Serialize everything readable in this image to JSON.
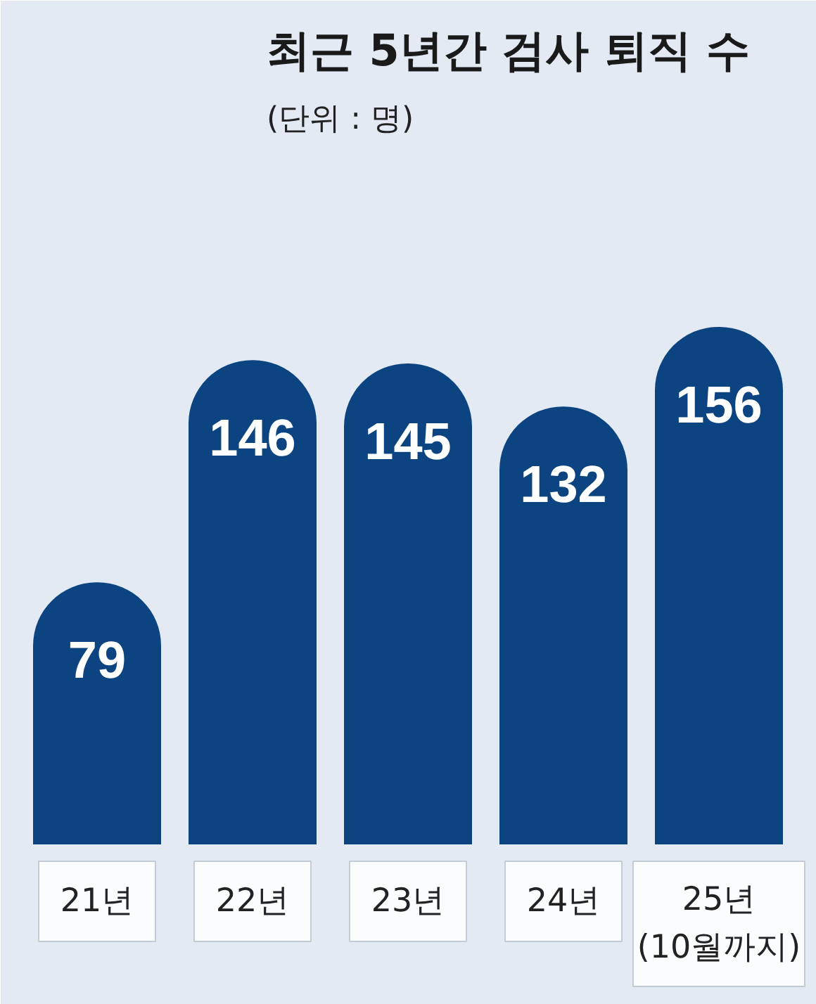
{
  "chart_data": {
    "type": "bar",
    "title": "최근 5년간 검사 퇴직 수",
    "subtitle": "(단위 : 명)",
    "categories": [
      "21년",
      "22년",
      "23년",
      "24년",
      "25년\n(10월까지)"
    ],
    "values": [
      79,
      146,
      145,
      132,
      156
    ],
    "color": "#0b4481",
    "data_labels": true
  }
}
